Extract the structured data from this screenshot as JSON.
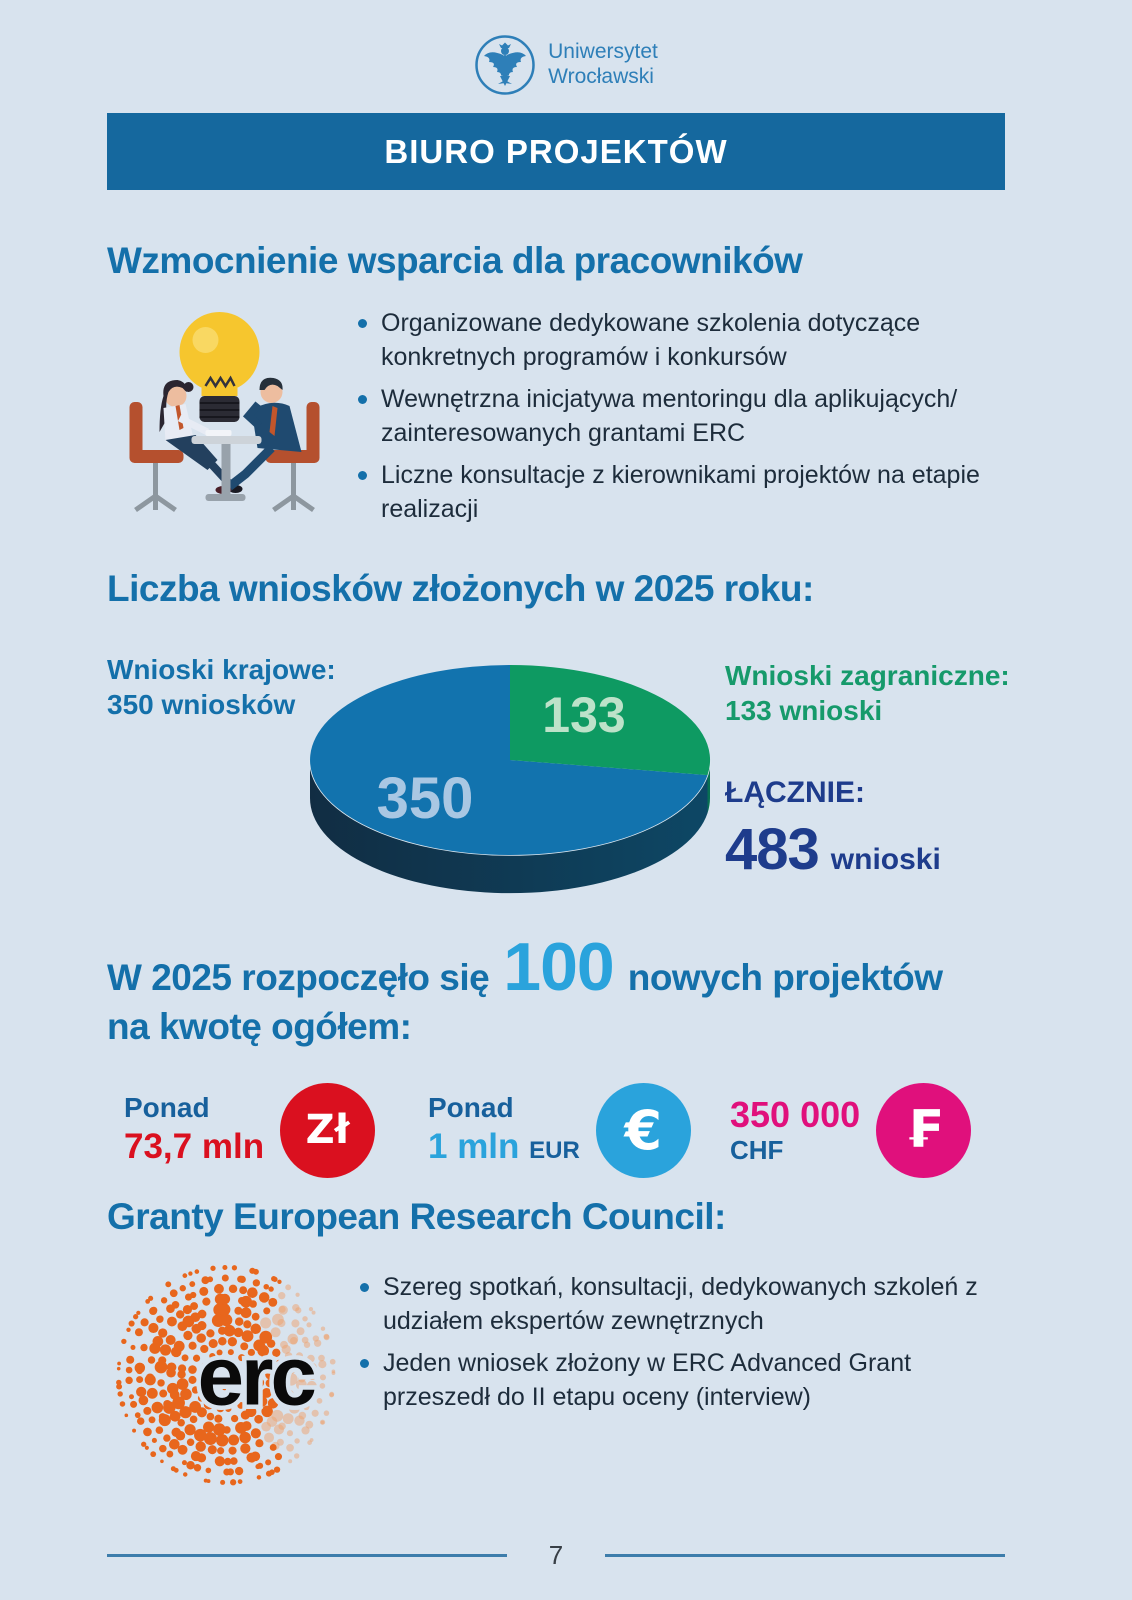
{
  "colors": {
    "bg": "#d8e3ee",
    "banner": "#15689e",
    "accent": "#1470aa",
    "text-dark": "#1d2c3b",
    "green": "#169a6b",
    "navy": "#1e3c8c",
    "red": "#da101f",
    "skyblue": "#2aa3dc",
    "magenta": "#e0107c",
    "label-blue": "#17609c",
    "line-blue": "#3d7dab",
    "pie-blue": "#1273ae",
    "pie-green": "#0e9a62",
    "erc-orange": "#e8661c"
  },
  "icons": {
    "emblem": "university-eagle-emblem",
    "illustration": "meeting-lightbulb-illustration",
    "zloty": "zloty-coin-icon",
    "euro": "euro-coin-icon",
    "franc": "franc-coin-icon",
    "erc": "erc-dotted-logo"
  },
  "header": {
    "university_line1": "Uniwersytet",
    "university_line2": "Wrocławski"
  },
  "banner": {
    "title": "BIURO PROJEKTÓW"
  },
  "section_support": {
    "heading": "Wzmocnienie wsparcia dla pracowników",
    "bullets": [
      "Organizowane dedykowane szkolenia dotyczące konkretnych programów i konkursów",
      "Wewnętrzna inicjatywa mentoringu dla aplikujących/ zainteresowanych grantami ERC",
      "Liczne konsultacje z kierownikami projektów na etapie realizacji"
    ]
  },
  "chart_data": {
    "type": "pie",
    "title": "Liczba wniosków złożonych w 2025 roku:",
    "style": "3d-pie",
    "start_angle_deg": -90,
    "slices": [
      {
        "label": "Wnioski zagraniczne",
        "value": 133,
        "color": "#0e9a62",
        "label_color": "#bde2c9"
      },
      {
        "label": "Wnioski krajowe",
        "value": 350,
        "color": "#1273ae",
        "label_color": "#a9c7e3"
      }
    ],
    "total": 483,
    "labels": {
      "left_line1": "Wnioski krajowe:",
      "left_line2": "350 wniosków",
      "right_line1": "Wnioski zagraniczne:",
      "right_line2": "133 wnioski",
      "total_caption": "ŁĄCZNIE:",
      "total_value": "483",
      "total_unit": "wnioski"
    }
  },
  "section_projects": {
    "prefix": "W 2025 rozpoczęło się",
    "big_number": "100",
    "suffix": "nowych projektów",
    "line2": "na kwotę ogółem:",
    "amounts": [
      {
        "caption": "Ponad",
        "value": "73,7 mln",
        "symbol": "Zł",
        "currency": "PLN"
      },
      {
        "caption": "Ponad",
        "value": "1 mln",
        "unit": "EUR",
        "symbol": "€",
        "currency": "EUR"
      },
      {
        "value": "350 000",
        "unit": "CHF",
        "symbol": "₣",
        "currency": "CHF"
      }
    ]
  },
  "section_erc": {
    "heading": "Granty European Research Council:",
    "logo_text": "erc",
    "bullets": [
      "Szereg spotkań, konsultacji, dedykowanych szkoleń z udziałem ekspertów zewnętrznych",
      "Jeden wniosek złożony w ERC Advanced Grant przeszedł do II etapu oceny (interview)"
    ]
  },
  "footer": {
    "page_number": "7"
  }
}
